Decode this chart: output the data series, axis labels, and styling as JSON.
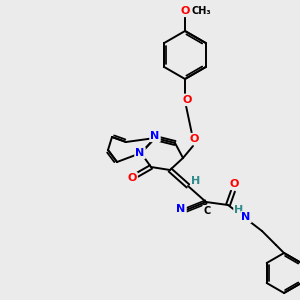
{
  "background_color": "#ebebeb",
  "atom_colors": {
    "N": "#0000ff",
    "O": "#ff0000",
    "C": "#000000",
    "H": "#2e8b8b",
    "bond": "#000000"
  },
  "figsize": [
    3.0,
    3.0
  ],
  "dpi": 100,
  "xlim": [
    0,
    300
  ],
  "ylim": [
    0,
    300
  ]
}
